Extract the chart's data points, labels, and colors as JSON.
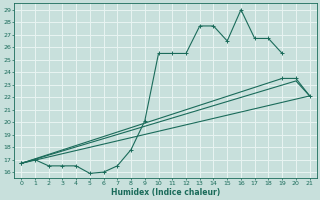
{
  "title": "",
  "xlabel": "Humidex (Indice chaleur)",
  "xlim": [
    -0.5,
    21.5
  ],
  "ylim": [
    15.5,
    29.5
  ],
  "xticks": [
    0,
    1,
    2,
    3,
    4,
    5,
    6,
    7,
    8,
    9,
    10,
    11,
    12,
    13,
    14,
    15,
    16,
    17,
    18,
    19,
    20,
    21
  ],
  "yticks": [
    16,
    17,
    18,
    19,
    20,
    21,
    22,
    23,
    24,
    25,
    26,
    27,
    28,
    29
  ],
  "background_color": "#c8e0dc",
  "grid_color": "#e8f4f2",
  "line_color": "#1a6b5a",
  "line1_x": [
    0,
    1,
    2,
    3,
    4,
    5,
    6,
    7,
    8,
    9,
    10,
    11,
    12,
    13,
    14,
    15,
    16,
    17,
    18,
    19
  ],
  "line1_y": [
    16.7,
    17.0,
    16.5,
    16.5,
    16.5,
    15.9,
    16.0,
    16.5,
    17.8,
    20.1,
    25.5,
    25.5,
    25.5,
    27.7,
    27.7,
    26.5,
    29.0,
    26.7,
    26.7,
    25.5
  ],
  "line2_x": [
    0,
    19,
    20,
    21
  ],
  "line2_y": [
    16.7,
    23.5,
    23.5,
    22.1
  ],
  "line3_x": [
    0,
    20,
    21
  ],
  "line3_y": [
    16.7,
    23.3,
    22.1
  ],
  "line4_x": [
    0,
    21
  ],
  "line4_y": [
    16.7,
    22.1
  ]
}
